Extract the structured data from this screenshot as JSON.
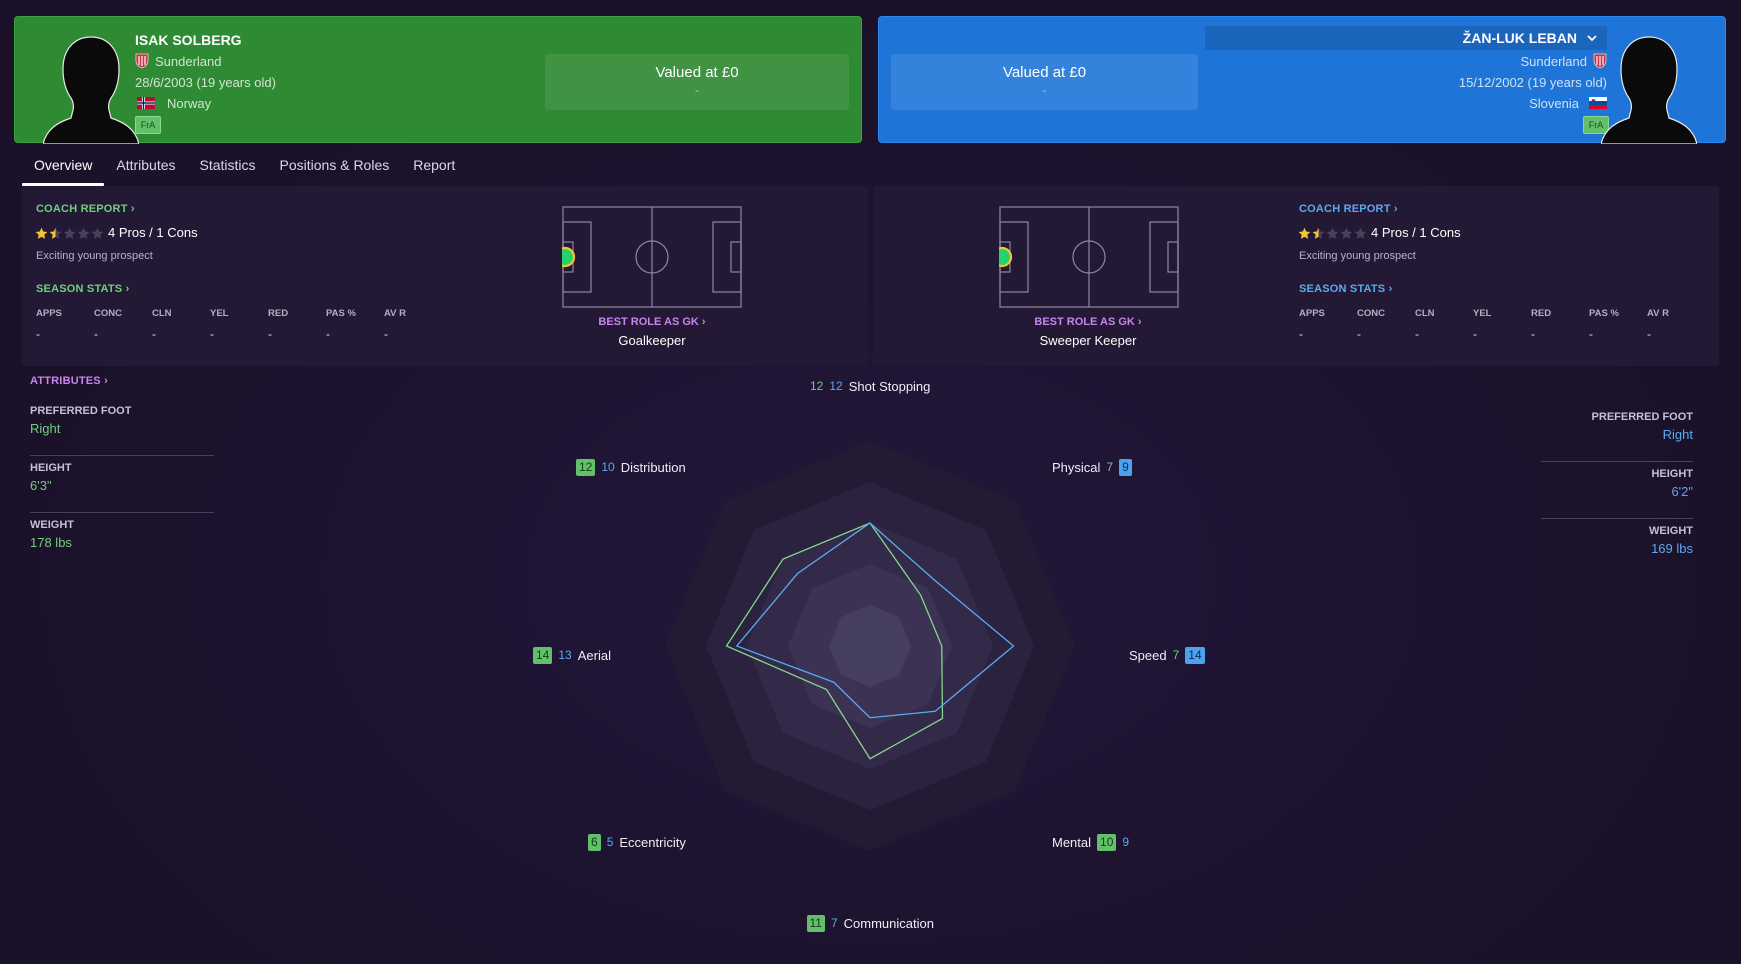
{
  "colors": {
    "left_accent": "#2f8a34",
    "right_accent": "#1f74d8",
    "left_series": "#86d68a",
    "right_series": "#5aaaf0",
    "role_link": "#c884f0"
  },
  "player_left": {
    "name": "ISAK SOLBERG",
    "club": "Sunderland",
    "dob": "28/6/2003 (19 years old)",
    "nationality": "Norway",
    "foot_tag": "FrA",
    "value_label": "Valued at £0",
    "value_sub": "-"
  },
  "player_right": {
    "name": "ŽAN-LUK LEBAN",
    "club": "Sunderland",
    "dob": "15/12/2002 (19 years old)",
    "nationality": "Slovenia",
    "foot_tag": "FrA",
    "value_label": "Valued at £0",
    "value_sub": "-"
  },
  "tabs": [
    {
      "label": "Overview",
      "active": true
    },
    {
      "label": "Attributes"
    },
    {
      "label": "Statistics"
    },
    {
      "label": "Positions & Roles"
    },
    {
      "label": "Report"
    }
  ],
  "overview_left": {
    "coach_report_label": "COACH REPORT",
    "stars": 1.5,
    "pros_cons": "4 Pros / 1 Cons",
    "description": "Exciting young prospect",
    "season_stats_label": "SEASON STATS",
    "stat_headers": [
      "APPS",
      "CONC",
      "CLN",
      "YEL",
      "RED",
      "PAS %",
      "AV R"
    ],
    "stat_values": [
      "-",
      "-",
      "-",
      "-",
      "-",
      "-",
      "-"
    ],
    "best_role_label": "BEST ROLE AS GK",
    "best_role": "Goalkeeper"
  },
  "overview_right": {
    "coach_report_label": "COACH REPORT",
    "stars": 1.5,
    "pros_cons": "4 Pros / 1 Cons",
    "description": "Exciting young prospect",
    "season_stats_label": "SEASON STATS",
    "stat_headers": [
      "APPS",
      "CONC",
      "CLN",
      "YEL",
      "RED",
      "PAS %",
      "AV R"
    ],
    "stat_values": [
      "-",
      "-",
      "-",
      "-",
      "-",
      "-",
      "-"
    ],
    "best_role_label": "BEST ROLE AS GK",
    "best_role": "Sweeper Keeper"
  },
  "attributes_link": "ATTRIBUTES",
  "side_left": {
    "preferred_foot_label": "PREFERRED FOOT",
    "preferred_foot": "Right",
    "height_label": "HEIGHT",
    "height": "6'3\"",
    "weight_label": "WEIGHT",
    "weight": "178 lbs"
  },
  "side_right": {
    "preferred_foot_label": "PREFERRED FOOT",
    "preferred_foot": "Right",
    "height_label": "HEIGHT",
    "height": "6'2\"",
    "weight_label": "WEIGHT",
    "weight": "169 lbs"
  },
  "chart_data": {
    "type": "radar",
    "scale": [
      0,
      20
    ],
    "axes": [
      "Shot Stopping",
      "Physical",
      "Speed",
      "Mental",
      "Communication",
      "Eccentricity",
      "Aerial",
      "Distribution"
    ],
    "series": [
      {
        "values": [
          12,
          7,
          7,
          10,
          11,
          6,
          14,
          12
        ]
      },
      {
        "values": [
          12,
          9,
          14,
          9,
          7,
          5,
          13,
          10
        ]
      }
    ],
    "highlight": [
      [
        "none",
        "none"
      ],
      [
        "none",
        "right"
      ],
      [
        "none",
        "right"
      ],
      [
        "left",
        "none"
      ],
      [
        "left",
        "none"
      ],
      [
        "left",
        "none"
      ],
      [
        "left",
        "none"
      ],
      [
        "left",
        "none"
      ]
    ]
  }
}
